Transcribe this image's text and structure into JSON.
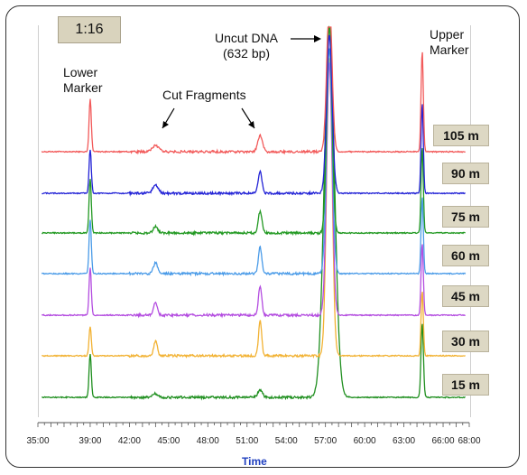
{
  "dilution": "1:16",
  "annotations": {
    "lower_marker": [
      "Lower",
      "Marker"
    ],
    "cut_fragments": "Cut Fragments",
    "uncut_dna": [
      "Uncut DNA",
      "(632 bp)"
    ],
    "upper_marker": [
      "Upper",
      "Marker"
    ]
  },
  "chart_data": {
    "type": "line",
    "xlabel": "Time",
    "ylabel": "",
    "x_ticks": [
      "35:00",
      "39:00",
      "42:00",
      "45:00",
      "48:00",
      "51:00",
      "54:00",
      "57:00",
      "60:00",
      "63:00",
      "66:00",
      "68:00"
    ],
    "xlim": [
      35.0,
      68.0
    ],
    "peak_times": {
      "lower_marker": 39.0,
      "cut_fragment_1": 44.0,
      "cut_fragment_2": 52.0,
      "uncut_dna": 57.3,
      "upper_marker": 64.4
    },
    "series": [
      {
        "name": "105 m",
        "color": "#f25a5a"
      },
      {
        "name": "90 m",
        "color": "#2323d6"
      },
      {
        "name": "75 m",
        "color": "#229922"
      },
      {
        "name": "60 m",
        "color": "#4a9be8"
      },
      {
        "name": "45 m",
        "color": "#b44de0"
      },
      {
        "name": "30 m",
        "color": "#f2b233"
      },
      {
        "name": "15 m",
        "color": "#1f8f1f"
      }
    ]
  }
}
